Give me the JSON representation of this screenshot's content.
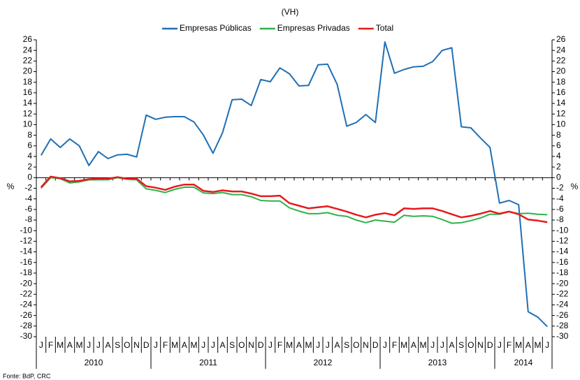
{
  "chart_data": {
    "type": "line",
    "subtitle": "(VH)",
    "y_label": "%",
    "y2_label": "%",
    "footnote": "Fonte: BdP, CRC",
    "categories": [
      "J",
      "F",
      "M",
      "A",
      "M",
      "J",
      "J",
      "A",
      "S",
      "O",
      "N",
      "D",
      "J",
      "F",
      "M",
      "A",
      "M",
      "J",
      "J",
      "A",
      "S",
      "O",
      "N",
      "D",
      "J",
      "F",
      "M",
      "A",
      "M",
      "J",
      "J",
      "A",
      "S",
      "O",
      "N",
      "D",
      "J",
      "F",
      "M",
      "A",
      "M",
      "J",
      "J",
      "A",
      "S",
      "O",
      "N",
      "D",
      "J",
      "F",
      "M",
      "A",
      "M",
      "J"
    ],
    "years": [
      "2010",
      "2011",
      "2012",
      "2013",
      "2014"
    ],
    "series": [
      {
        "name": "Empresas Públicas",
        "color": "#1f6fb5",
        "values": [
          4.2,
          7.3,
          5.7,
          7.3,
          6.0,
          2.3,
          4.9,
          3.6,
          4.3,
          4.4,
          3.9,
          11.8,
          11.0,
          11.4,
          11.5,
          11.5,
          10.5,
          8.0,
          4.6,
          8.5,
          14.7,
          14.8,
          13.6,
          18.5,
          18.1,
          20.7,
          19.6,
          17.3,
          17.4,
          21.3,
          21.4,
          17.6,
          9.7,
          10.4,
          11.9,
          10.4,
          25.6,
          19.7,
          20.4,
          20.9,
          21.0,
          21.9,
          24.0,
          24.5,
          9.6,
          9.4,
          7.5,
          5.7,
          -4.8,
          -4.3,
          -5.1,
          -25.3,
          -26.3,
          -28.1
        ]
      },
      {
        "name": "Empresas Privadas",
        "color": "#2db34a",
        "values": [
          -2.0,
          0.0,
          -0.2,
          -1.0,
          -0.8,
          -0.4,
          -0.4,
          -0.4,
          0.0,
          -0.3,
          -0.4,
          -2.1,
          -2.4,
          -2.8,
          -2.2,
          -1.8,
          -1.8,
          -2.9,
          -3.0,
          -2.8,
          -3.2,
          -3.2,
          -3.6,
          -4.3,
          -4.4,
          -4.4,
          -5.7,
          -6.3,
          -6.8,
          -6.8,
          -6.6,
          -7.1,
          -7.3,
          -8.0,
          -8.5,
          -8.0,
          -8.2,
          -8.4,
          -7.1,
          -7.3,
          -7.2,
          -7.3,
          -7.9,
          -8.6,
          -8.5,
          -8.1,
          -7.6,
          -6.9,
          -6.9,
          -6.4,
          -6.8,
          -6.7,
          -6.9,
          -7.0
        ]
      },
      {
        "name": "Total",
        "color": "#e8191c",
        "values": [
          -1.8,
          0.2,
          -0.1,
          -0.7,
          -0.6,
          -0.3,
          -0.2,
          -0.2,
          0.1,
          -0.2,
          -0.2,
          -1.6,
          -1.9,
          -2.3,
          -1.7,
          -1.3,
          -1.3,
          -2.5,
          -2.7,
          -2.4,
          -2.6,
          -2.6,
          -3.0,
          -3.5,
          -3.5,
          -3.4,
          -4.8,
          -5.3,
          -5.8,
          -5.6,
          -5.4,
          -5.9,
          -6.4,
          -7.0,
          -7.5,
          -7.0,
          -6.7,
          -7.1,
          -5.8,
          -5.9,
          -5.8,
          -5.8,
          -6.3,
          -6.9,
          -7.5,
          -7.2,
          -6.8,
          -6.3,
          -6.8,
          -6.4,
          -6.9,
          -7.9,
          -8.1,
          -8.4
        ]
      }
    ],
    "ylim": [
      -30,
      26
    ],
    "yticks": [
      -30,
      -28,
      -26,
      -24,
      -22,
      -20,
      -18,
      -16,
      -14,
      -12,
      -10,
      -8,
      -6,
      -4,
      -2,
      0,
      2,
      4,
      6,
      8,
      10,
      12,
      14,
      16,
      18,
      20,
      22,
      24,
      26
    ],
    "y2lim": [
      -30,
      26
    ],
    "y2ticks": [
      -30,
      -28,
      -26,
      -24,
      -22,
      -20,
      -18,
      -16,
      -14,
      -12,
      -10,
      -8,
      -6,
      -4,
      -2,
      0,
      2,
      4,
      6,
      8,
      10,
      12,
      14,
      16,
      18,
      20,
      22,
      24,
      26
    ],
    "legend": "top",
    "grid": false
  }
}
